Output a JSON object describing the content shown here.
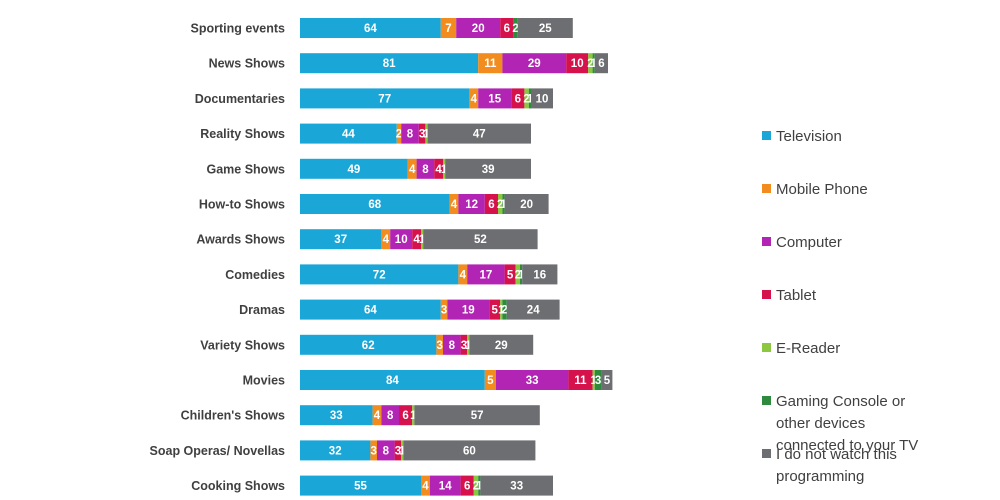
{
  "chart_data": {
    "type": "bar",
    "orientation": "horizontal",
    "stacked": true,
    "categories": [
      "Sporting events",
      "News Shows",
      "Documentaries",
      "Reality Shows",
      "Game Shows",
      "How-to Shows",
      "Awards Shows",
      "Comedies",
      "Dramas",
      "Variety Shows",
      "Movies",
      "Children's Shows",
      "Soap Operas/ Novellas",
      "Cooking Shows"
    ],
    "series": [
      {
        "name": "Television",
        "color": "#1aa7d8",
        "values": [
          64,
          81,
          77,
          44,
          49,
          68,
          37,
          72,
          64,
          62,
          84,
          33,
          32,
          55
        ]
      },
      {
        "name": "Mobile Phone",
        "color": "#f28c1e",
        "values": [
          7,
          11,
          4,
          2,
          4,
          4,
          4,
          4,
          3,
          3,
          5,
          4,
          3,
          4
        ]
      },
      {
        "name": "Computer",
        "color": "#b224b4",
        "values": [
          20,
          29,
          15,
          8,
          8,
          12,
          10,
          17,
          19,
          8,
          33,
          8,
          8,
          14
        ]
      },
      {
        "name": "Tablet",
        "color": "#d6124d",
        "values": [
          6,
          10,
          6,
          3,
          4,
          6,
          4,
          5,
          5,
          3,
          11,
          6,
          3,
          6
        ]
      },
      {
        "name": "E-Reader",
        "color": "#8dc63f",
        "values": [
          0,
          2,
          2,
          1,
          1,
          2,
          1,
          2,
          1,
          1,
          1,
          1,
          1,
          2
        ]
      },
      {
        "name": "Gaming Console or other devices connected to your TV",
        "color": "#2e8b3e",
        "values": [
          2,
          1,
          1,
          0,
          0,
          1,
          0,
          1,
          2,
          0,
          3,
          0,
          0,
          1
        ]
      },
      {
        "name": "I do not watch this programming",
        "color": "#6d6e71",
        "values": [
          25,
          6,
          10,
          47,
          39,
          20,
          52,
          16,
          24,
          29,
          5,
          57,
          60,
          33
        ]
      }
    ],
    "legend": {
      "position": "right"
    },
    "grid": false
  }
}
